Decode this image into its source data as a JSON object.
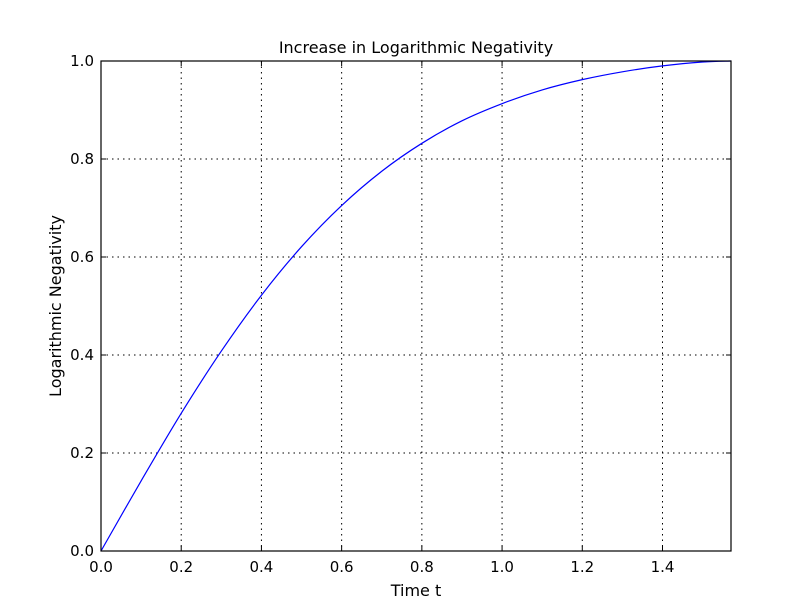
{
  "chart_data": {
    "type": "line",
    "title": "Increase in Logarithmic Negativity",
    "xlabel": "Time t",
    "ylabel": "Logarithmic Negativity",
    "xlim": [
      0,
      1.5708
    ],
    "ylim": [
      0,
      1.0
    ],
    "xticks": [
      0.0,
      0.2,
      0.4,
      0.6,
      0.8,
      1.0,
      1.2,
      1.4
    ],
    "xtick_labels": [
      "0.0",
      "0.2",
      "0.4",
      "0.6",
      "0.8",
      "1.0",
      "1.2",
      "1.4"
    ],
    "yticks": [
      0.0,
      0.2,
      0.4,
      0.6,
      0.8,
      1.0
    ],
    "ytick_labels": [
      "0.0",
      "0.2",
      "0.4",
      "0.6",
      "0.8",
      "1.0"
    ],
    "grid": true,
    "series": [
      {
        "color": "#0000ff",
        "x": [
          0.0,
          0.1,
          0.2,
          0.3,
          0.4,
          0.5,
          0.6,
          0.7,
          0.8,
          0.9,
          1.0,
          1.1,
          1.2,
          1.3,
          1.4,
          1.5,
          1.5708
        ],
        "y": [
          0.0,
          0.143,
          0.281,
          0.408,
          0.522,
          0.621,
          0.705,
          0.775,
          0.832,
          0.878,
          0.913,
          0.941,
          0.962,
          0.978,
          0.99,
          0.998,
          1.0
        ]
      }
    ]
  }
}
